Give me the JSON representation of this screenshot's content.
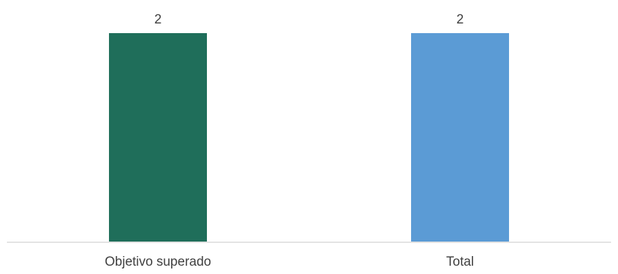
{
  "chart_data": {
    "type": "bar",
    "categories": [
      "Objetivo superado",
      "Total"
    ],
    "values": [
      2,
      2
    ],
    "data_labels": [
      "2",
      "2"
    ],
    "colors": [
      "#1f6e5a",
      "#5b9bd5"
    ],
    "title": "",
    "xlabel": "",
    "ylabel": "",
    "ylim": [
      0,
      2
    ],
    "grid": false,
    "legend": "none"
  }
}
